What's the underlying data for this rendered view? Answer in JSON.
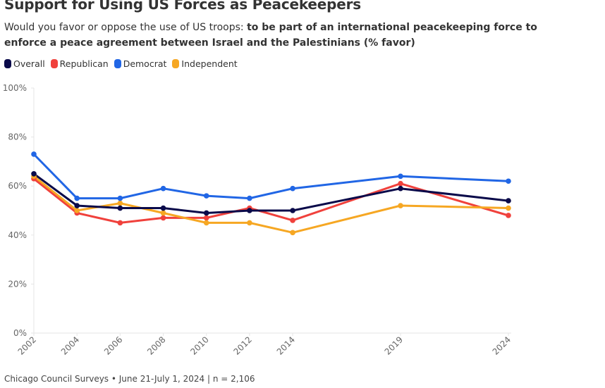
{
  "chart_data": {
    "type": "line",
    "title": "Support for Using US Forces as Peacekeepers",
    "subtitle_plain": "Would you favor or oppose the use of US troops: ",
    "subtitle_bold": "to be part of an international peacekeeping force to enforce a peace agreement between Israel and the Palestinians (% favor)",
    "xlabel": "",
    "ylabel": "",
    "x": [
      2002,
      2004,
      2006,
      2008,
      2010,
      2012,
      2014,
      2019,
      2024
    ],
    "x_tick_labels": [
      "2002",
      "2004",
      "2006",
      "2008",
      "2010",
      "2012",
      "2014",
      "2019",
      "2024"
    ],
    "ylim": [
      0,
      100
    ],
    "y_ticks": [
      0,
      20,
      40,
      60,
      80,
      100
    ],
    "y_tick_labels": [
      "0%",
      "20%",
      "40%",
      "60%",
      "80%",
      "100%"
    ],
    "grid": false,
    "legend_position": "top-left",
    "series": [
      {
        "name": "Overall",
        "color": "#0a0a4a",
        "values": [
          65,
          52,
          51,
          51,
          49,
          50,
          50,
          59,
          54
        ]
      },
      {
        "name": "Republican",
        "color": "#f0413c",
        "values": [
          63,
          49,
          45,
          47,
          47,
          51,
          46,
          61,
          48
        ]
      },
      {
        "name": "Democrat",
        "color": "#2166e5",
        "values": [
          73,
          55,
          55,
          59,
          56,
          55,
          59,
          64,
          62
        ]
      },
      {
        "name": "Independent",
        "color": "#f6a723",
        "values": [
          64,
          50,
          53,
          49,
          45,
          45,
          41,
          52,
          51
        ]
      }
    ]
  },
  "legend": [
    "Overall",
    "Republican",
    "Democrat",
    "Independent"
  ],
  "footer": "Chicago Council Surveys • June 21-July 1, 2024 | n = 2,106"
}
